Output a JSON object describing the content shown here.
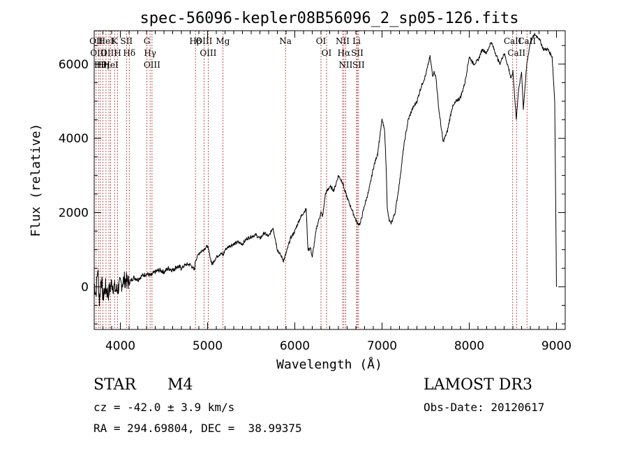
{
  "chart_data": {
    "type": "line",
    "title": "spec-56096-kepler08B56096_2_sp05-126.fits",
    "xlabel": "Wavelength (Å)",
    "ylabel": "Flux (relative)",
    "xlim": [
      3700,
      9100
    ],
    "ylim": [
      -1150,
      6900
    ],
    "xticks": [
      4000,
      5000,
      6000,
      7000,
      8000,
      9000
    ],
    "yticks": [
      0,
      2000,
      4000,
      6000
    ],
    "grid": false,
    "series": [
      {
        "name": "spectrum",
        "x": [
          3700,
          3720,
          3740,
          3760,
          3780,
          3800,
          3830,
          3860,
          3900,
          3950,
          4000,
          4050,
          4100,
          4150,
          4200,
          4250,
          4300,
          4350,
          4400,
          4450,
          4500,
          4550,
          4600,
          4650,
          4700,
          4750,
          4800,
          4850,
          4860,
          4900,
          4950,
          5000,
          5050,
          5100,
          5150,
          5180,
          5200,
          5250,
          5300,
          5350,
          5400,
          5450,
          5500,
          5550,
          5600,
          5650,
          5700,
          5750,
          5800,
          5850,
          5870,
          5900,
          5950,
          6000,
          6050,
          6100,
          6130,
          6150,
          6180,
          6200,
          6250,
          6300,
          6320,
          6350,
          6400,
          6450,
          6500,
          6550,
          6570,
          6600,
          6650,
          6700,
          6720,
          6750,
          6800,
          6850,
          6900,
          6950,
          7000,
          7030,
          7050,
          7060,
          7080,
          7100,
          7120,
          7150,
          7200,
          7250,
          7300,
          7350,
          7400,
          7450,
          7500,
          7550,
          7580,
          7600,
          7620,
          7650,
          7700,
          7750,
          7800,
          7850,
          7900,
          7950,
          8000,
          8050,
          8100,
          8150,
          8200,
          8250,
          8300,
          8350,
          8400,
          8450,
          8480,
          8500,
          8540,
          8560,
          8600,
          8620,
          8660,
          8700,
          8750,
          8800,
          8850,
          8900,
          8950,
          8980,
          9000
        ],
        "y": [
          100,
          -200,
          500,
          -400,
          300,
          -300,
          0,
          -200,
          100,
          -100,
          50,
          200,
          100,
          250,
          200,
          300,
          350,
          300,
          400,
          450,
          400,
          500,
          450,
          550,
          500,
          600,
          600,
          450,
          700,
          900,
          1000,
          1100,
          600,
          800,
          900,
          850,
          1000,
          1100,
          1150,
          1200,
          1150,
          1300,
          1350,
          1400,
          1300,
          1450,
          1350,
          1600,
          1000,
          800,
          700,
          900,
          1300,
          1500,
          1800,
          2000,
          2100,
          1000,
          1050,
          800,
          1600,
          2000,
          1900,
          2500,
          2700,
          2600,
          3000,
          2800,
          2600,
          2400,
          2100,
          1800,
          1700,
          1700,
          2200,
          2600,
          3200,
          3600,
          4500,
          4200,
          3000,
          2100,
          1800,
          1700,
          1800,
          2000,
          2800,
          3800,
          4500,
          4800,
          5000,
          5400,
          5700,
          6200,
          5700,
          5800,
          5600,
          4800,
          3900,
          4200,
          4800,
          5000,
          5100,
          5500,
          6200,
          6000,
          6100,
          6400,
          6300,
          6600,
          6300,
          6000,
          6300,
          5900,
          5600,
          5800,
          4500,
          5200,
          5800,
          4800,
          6000,
          6600,
          6800,
          6700,
          6400,
          6400,
          6200,
          5000,
          0
        ]
      }
    ],
    "lines": [
      {
        "wl": 3722,
        "label": "OII"
      },
      {
        "wl": 3750,
        "label": "OIII"
      },
      {
        "wl": 3771,
        "label": "Hθ"
      },
      {
        "wl": 3799,
        "label": "Hη"
      },
      {
        "wl": 3835,
        "label": "HeI"
      },
      {
        "wl": 3869,
        "label": "OIII"
      },
      {
        "wl": 3889,
        "label": "HeI"
      },
      {
        "wl": 3934,
        "label": "K"
      },
      {
        "wl": 3969,
        "label": "H"
      },
      {
        "wl": 4070,
        "label": "SII"
      },
      {
        "wl": 4102,
        "label": "Hδ"
      },
      {
        "wl": 4304,
        "label": "G"
      },
      {
        "wl": 4341,
        "label": "Hγ"
      },
      {
        "wl": 4363,
        "label": "OIII"
      },
      {
        "wl": 4861,
        "label": "Hβ"
      },
      {
        "wl": 4959,
        "label": "OIII"
      },
      {
        "wl": 5007,
        "label": "OIII"
      },
      {
        "wl": 5175,
        "label": "Mg"
      },
      {
        "wl": 5893,
        "label": "Na"
      },
      {
        "wl": 6300,
        "label": "OI"
      },
      {
        "wl": 6364,
        "label": "OI"
      },
      {
        "wl": 6548,
        "label": "NII"
      },
      {
        "wl": 6563,
        "label": "Hα"
      },
      {
        "wl": 6583,
        "label": "NII"
      },
      {
        "wl": 6708,
        "label": "Li"
      },
      {
        "wl": 6716,
        "label": "SII"
      },
      {
        "wl": 6731,
        "label": "SII"
      },
      {
        "wl": 8498,
        "label": "CaII"
      },
      {
        "wl": 8542,
        "label": "CaII"
      },
      {
        "wl": 8662,
        "label": "CaII"
      }
    ],
    "line_color": "#b22222",
    "spectrum_color": "#000000"
  },
  "info": {
    "object_class": "STAR",
    "subclass": "M4",
    "survey": "LAMOST DR3",
    "cz": "cz = -42.0 ± 3.9 km/s",
    "obs_date": "Obs-Date: 20120617",
    "radec": "RA = 294.69804, DEC =  38.99375"
  }
}
